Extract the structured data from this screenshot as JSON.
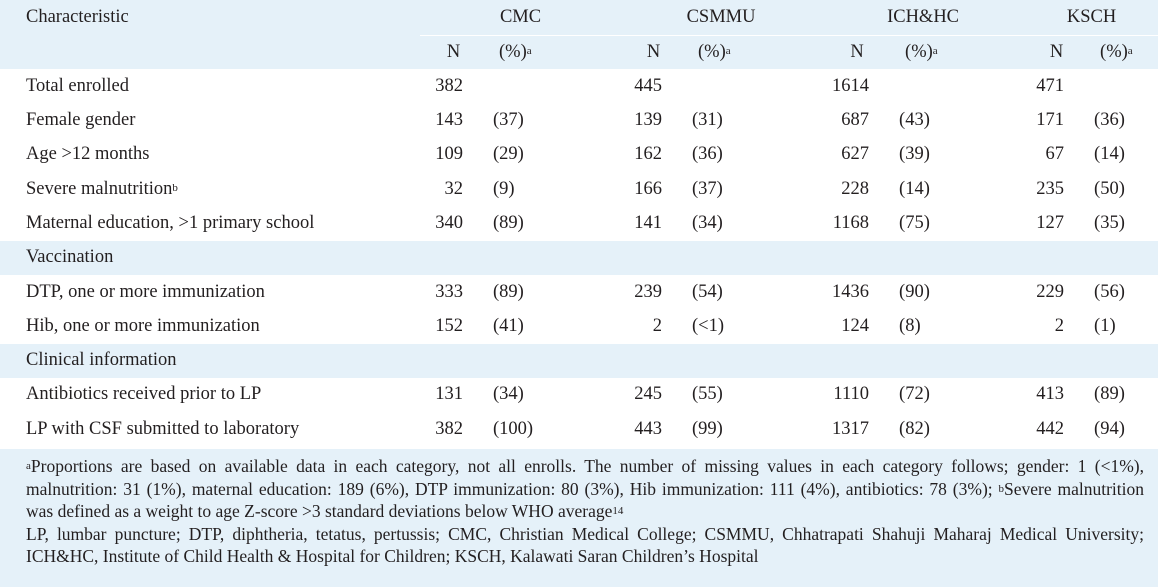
{
  "header": {
    "characteristic": "Characteristic",
    "groups": [
      "CMC",
      "CSMMU",
      "ICH&HC",
      "KSCH"
    ],
    "n_label": "N",
    "pct_label": "(%)",
    "pct_sup": "a"
  },
  "rows": [
    {
      "label": "Total enrolled",
      "values": [
        [
          "382",
          ""
        ],
        [
          "445",
          ""
        ],
        [
          "1614",
          ""
        ],
        [
          "471",
          ""
        ]
      ]
    },
    {
      "label": "Female gender",
      "values": [
        [
          "143",
          "(37)"
        ],
        [
          "139",
          "(31)"
        ],
        [
          "687",
          "(43)"
        ],
        [
          "171",
          "(36)"
        ]
      ]
    },
    {
      "label": "Age >12 months",
      "values": [
        [
          "109",
          "(29)"
        ],
        [
          "162",
          "(36)"
        ],
        [
          "627",
          "(39)"
        ],
        [
          "67",
          "(14)"
        ]
      ]
    },
    {
      "label": "Severe malnutrition",
      "sup": "b",
      "values": [
        [
          "32",
          "(9)"
        ],
        [
          "166",
          "(37)"
        ],
        [
          "228",
          "(14)"
        ],
        [
          "235",
          "(50)"
        ]
      ]
    },
    {
      "label": "Maternal education, >1 primary school",
      "values": [
        [
          "340",
          "(89)"
        ],
        [
          "141",
          "(34)"
        ],
        [
          "1168",
          "(75)"
        ],
        [
          "127",
          "(35)"
        ]
      ]
    }
  ],
  "section_vaccination": "Vaccination",
  "vaccination_rows": [
    {
      "label": "DTP, one or more immunization",
      "values": [
        [
          "333",
          "(89)"
        ],
        [
          "239",
          "(54)"
        ],
        [
          "1436",
          "(90)"
        ],
        [
          "229",
          "(56)"
        ]
      ]
    },
    {
      "label": "Hib, one or more immunization",
      "values": [
        [
          "152",
          "(41)"
        ],
        [
          "2",
          "(<1)"
        ],
        [
          "124",
          "(8)"
        ],
        [
          "2",
          "(1)"
        ]
      ]
    }
  ],
  "section_clinical": "Clinical information",
  "clinical_rows": [
    {
      "label": "Antibiotics received prior to LP",
      "values": [
        [
          "131",
          "(34)"
        ],
        [
          "245",
          "(55)"
        ],
        [
          "1110",
          "(72)"
        ],
        [
          "413",
          "(89)"
        ]
      ]
    },
    {
      "label": "LP with CSF submitted to laboratory",
      "values": [
        [
          "382",
          "(100)"
        ],
        [
          "443",
          "(99)"
        ],
        [
          "1317",
          "(82)"
        ],
        [
          "442",
          "(94)"
        ]
      ]
    }
  ],
  "footnotes": {
    "a_mark": "a",
    "a_text": "Proportions are based on available data in each category, not all enrolls. The number of missing values in each category follows; gender: 1 (<1%), malnutrition: 31 (1%), maternal education: 189 (6%), DTP immunization: 80 (3%), Hib immunization: 111 (4%), antibiotics: 78 (3%); ",
    "b_mark": "b",
    "b_text": "Severe malnutrition was defined as a weight to age Z-score >3 standard deviations below WHO average",
    "b_ref": "14",
    "abbrev": "LP, lumbar puncture; DTP, diphtheria, tetatus, pertussis; CMC, Christian Medical College; CSMMU, Chhatrapati Shahuji Maharaj Medical University; ICH&HC, Institute of Child Health & Hospital for Children; KSCH, Kalawati Saran Children’s Hospital"
  }
}
